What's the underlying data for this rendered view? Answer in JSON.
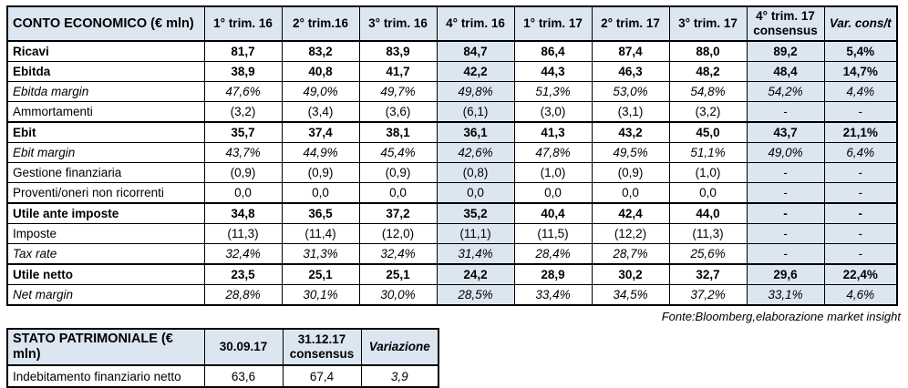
{
  "colors": {
    "header_fill": "#dce6f1",
    "border": "#000000",
    "background": "#ffffff"
  },
  "source_note": "Fonte:Bloomberg,elaborazione market insight",
  "income_table": {
    "title": "CONTO ECONOMICO (€ mln)",
    "headers": [
      {
        "label": "1° trim. 16"
      },
      {
        "label": "2° trim.16"
      },
      {
        "label": "3° trim. 16"
      },
      {
        "label": "4° trim. 16"
      },
      {
        "label": "1° trim. 17"
      },
      {
        "label": "2° trim. 17"
      },
      {
        "label": "3° trim. 17"
      },
      {
        "label": "4° trim. 17\nconsensus"
      },
      {
        "label": "Var. cons/t",
        "italic": true
      }
    ],
    "rows": [
      {
        "label": "Ricavi",
        "style": "bold",
        "values": [
          "81,7",
          "83,2",
          "83,9",
          "84,7",
          "86,4",
          "87,4",
          "88,0",
          "89,2",
          "5,4%"
        ]
      },
      {
        "label": "Ebitda",
        "style": "bold",
        "values": [
          "38,9",
          "40,8",
          "41,7",
          "42,2",
          "44,3",
          "46,3",
          "48,2",
          "48,4",
          "14,7%"
        ]
      },
      {
        "label": "Ebitda margin",
        "style": "italic",
        "values": [
          "47,6%",
          "49,0%",
          "49,7%",
          "49,8%",
          "51,3%",
          "53,0%",
          "54,8%",
          "54,2%",
          "4,4%"
        ]
      },
      {
        "label": "Ammortamenti",
        "style": "regular",
        "values": [
          "(3,2)",
          "(3,4)",
          "(3,6)",
          "(6,1)",
          "(3,0)",
          "(3,1)",
          "(3,2)",
          "-",
          "-"
        ]
      },
      {
        "label": "Ebit",
        "style": "bold",
        "values": [
          "35,7",
          "37,4",
          "38,1",
          "36,1",
          "41,3",
          "43,2",
          "45,0",
          "43,7",
          "21,1%"
        ]
      },
      {
        "label": "Ebit margin",
        "style": "italic",
        "values": [
          "43,7%",
          "44,9%",
          "45,4%",
          "42,6%",
          "47,8%",
          "49,5%",
          "51,1%",
          "49,0%",
          "6,4%"
        ]
      },
      {
        "label": "Gestione finanziaria",
        "style": "regular",
        "values": [
          "(0,9)",
          "(0,9)",
          "(0,9)",
          "(0,8)",
          "(1,0)",
          "(0,9)",
          "(1,0)",
          "-",
          "-"
        ]
      },
      {
        "label": "Proventi/oneri non ricorrenti",
        "style": "regular",
        "values": [
          "0,0",
          "0,0",
          "0,0",
          "0,0",
          "0,0",
          "0,0",
          "0,0",
          "-",
          "-"
        ]
      },
      {
        "label": "Utile ante imposte",
        "style": "bold",
        "values": [
          "34,8",
          "36,5",
          "37,2",
          "35,2",
          "40,4",
          "42,4",
          "44,0",
          "-",
          "-"
        ]
      },
      {
        "label": "Imposte",
        "style": "regular",
        "values": [
          "(11,3)",
          "(11,4)",
          "(12,0)",
          "(11,1)",
          "(11,5)",
          "(12,2)",
          "(11,3)",
          "-",
          "-"
        ]
      },
      {
        "label": "Tax rate",
        "style": "italic",
        "values": [
          "32,4%",
          "31,3%",
          "32,4%",
          "31,4%",
          "28,4%",
          "28,7%",
          "25,6%",
          "-",
          "-"
        ]
      },
      {
        "label": "Utile netto",
        "style": "bold",
        "values": [
          "23,5",
          "25,1",
          "25,1",
          "24,2",
          "28,9",
          "30,2",
          "32,7",
          "29,6",
          "22,4%"
        ]
      },
      {
        "label": "Net margin",
        "style": "italic",
        "values": [
          "28,8%",
          "30,1%",
          "30,0%",
          "28,5%",
          "33,4%",
          "34,5%",
          "37,2%",
          "33,1%",
          "4,6%"
        ]
      }
    ]
  },
  "balance_table": {
    "title": "STATO PATRIMONIALE (€ mln)",
    "headers": [
      {
        "label": "30.09.17"
      },
      {
        "label": "31.12.17\nconsensus"
      },
      {
        "label": "Variazione",
        "italic": true
      }
    ],
    "rows": [
      {
        "label": "Indebitamento finanziario netto",
        "style": "regular",
        "values": [
          "63,6",
          "67,4",
          "3,9"
        ]
      }
    ]
  }
}
